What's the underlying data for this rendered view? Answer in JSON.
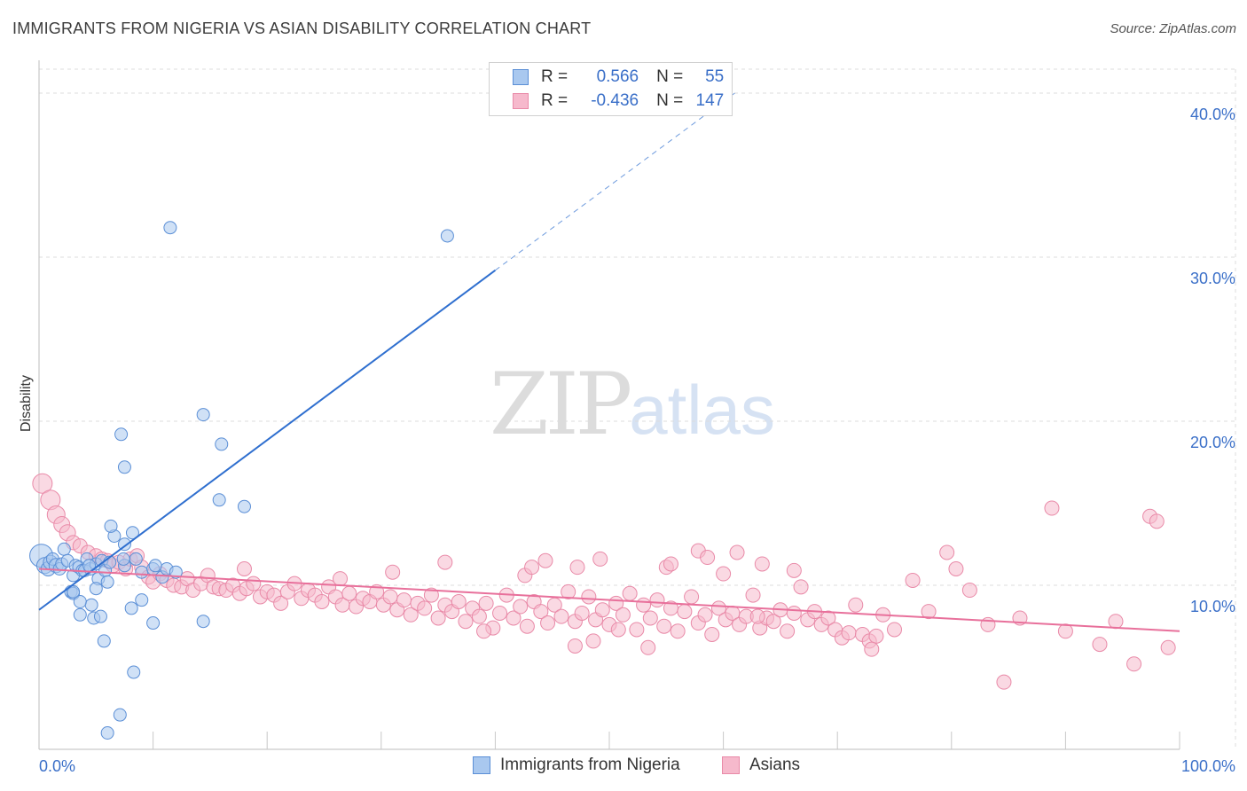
{
  "title": "IMMIGRANTS FROM NIGERIA VS ASIAN DISABILITY CORRELATION CHART",
  "source": "Source: ZipAtlas.com",
  "watermark": {
    "zip": "ZIP",
    "atlas": "atlas"
  },
  "legend_box": [
    {
      "r_label": "R =",
      "r_value": "0.566",
      "n_label": "N =",
      "n_value": "55"
    },
    {
      "r_label": "R =",
      "r_value": "-0.436",
      "n_label": "N =",
      "n_value": "147"
    }
  ],
  "bottom_legend": [
    "Immigrants from Nigeria",
    "Asians"
  ],
  "colors": {
    "blue_fill": "#a9c8ef",
    "blue_stroke": "#5b8fd6",
    "blue_line": "#2f6fcf",
    "pink_fill": "#f6b9cc",
    "pink_stroke": "#e98aa8",
    "pink_line": "#e8709b",
    "grid": "#dcdcdc",
    "tick_text": "#3a6fc8"
  },
  "chart_data": {
    "type": "scatter",
    "title": "IMMIGRANTS FROM NIGERIA VS ASIAN DISABILITY CORRELATION CHART",
    "xlabel": "",
    "ylabel": "Disability",
    "xlim": [
      0,
      100
    ],
    "ylim": [
      0,
      42
    ],
    "x_tick_labels": [
      "0.0%",
      "100.0%"
    ],
    "y_ticks": [
      10,
      20,
      30,
      40
    ],
    "y_tick_labels": [
      "10.0%",
      "20.0%",
      "30.0%",
      "40.0%"
    ],
    "series": [
      {
        "name": "Immigrants from Nigeria",
        "r": 0.566,
        "n": 55,
        "trend": {
          "x0": 0,
          "y0": 8.5,
          "x1": 40,
          "y1": 29.2,
          "dash_to_x": 61,
          "dash_to_y": 40.0
        },
        "points": [
          [
            0.2,
            11.8,
            13
          ],
          [
            0.5,
            11.2,
            9
          ],
          [
            0.8,
            11.0,
            8
          ],
          [
            1.0,
            11.4,
            8
          ],
          [
            1.2,
            11.6,
            7
          ],
          [
            1.5,
            11.2,
            8
          ],
          [
            1.8,
            11.0,
            7
          ],
          [
            2.0,
            11.3,
            7
          ],
          [
            2.2,
            12.2,
            7
          ],
          [
            2.5,
            11.5,
            7
          ],
          [
            2.8,
            9.6,
            7
          ],
          [
            3.0,
            9.5,
            7
          ],
          [
            3.0,
            10.6,
            7
          ],
          [
            3.2,
            11.2,
            7
          ],
          [
            3.5,
            11.1,
            7
          ],
          [
            3.8,
            10.9,
            7
          ],
          [
            4.0,
            10.9,
            7
          ],
          [
            4.2,
            11.6,
            7
          ],
          [
            4.5,
            11.0,
            7
          ],
          [
            5.0,
            11.3,
            7
          ],
          [
            5.2,
            10.4,
            7
          ],
          [
            5.5,
            11.5,
            7
          ],
          [
            5.8,
            10.9,
            7
          ],
          [
            6.0,
            10.2,
            7
          ],
          [
            4.6,
            8.8,
            7
          ],
          [
            3.6,
            9.0,
            7
          ],
          [
            3.0,
            9.6,
            7
          ],
          [
            4.4,
            11.2,
            7
          ],
          [
            5.0,
            9.8,
            7
          ],
          [
            6.2,
            11.4,
            7
          ],
          [
            7.5,
            11.2,
            7
          ],
          [
            8.5,
            11.6,
            7
          ],
          [
            9.0,
            10.8,
            7
          ],
          [
            10.0,
            11.0,
            7
          ],
          [
            10.8,
            10.5,
            7
          ],
          [
            11.2,
            11.0,
            7
          ],
          [
            10.2,
            11.2,
            7
          ],
          [
            12.0,
            10.8,
            7
          ],
          [
            6.6,
            13.0,
            7
          ],
          [
            7.5,
            12.5,
            7
          ],
          [
            7.4,
            11.6,
            7
          ],
          [
            6.3,
            13.6,
            7
          ],
          [
            8.2,
            13.2,
            7
          ],
          [
            9.0,
            9.1,
            7
          ],
          [
            4.8,
            8.0,
            7
          ],
          [
            3.6,
            8.2,
            7
          ],
          [
            5.4,
            8.1,
            7
          ],
          [
            8.1,
            8.6,
            7
          ],
          [
            5.7,
            6.6,
            7
          ],
          [
            10.0,
            7.7,
            7
          ],
          [
            14.4,
            7.8,
            7
          ],
          [
            7.2,
            19.2,
            7
          ],
          [
            7.5,
            17.2,
            7
          ],
          [
            14.4,
            20.4,
            7
          ],
          [
            15.8,
            15.2,
            7
          ],
          [
            16.0,
            18.6,
            7
          ],
          [
            18.0,
            14.8,
            7
          ],
          [
            11.5,
            31.8,
            7
          ],
          [
            35.8,
            31.3,
            7
          ],
          [
            8.3,
            4.7,
            7
          ],
          [
            7.1,
            2.1,
            7
          ],
          [
            6.0,
            1.0,
            7
          ]
        ]
      },
      {
        "name": "Asians",
        "r": -0.436,
        "n": 147,
        "trend": {
          "x0": 0,
          "y0": 11.0,
          "x1": 100,
          "y1": 7.2
        },
        "points": [
          [
            0.3,
            16.2,
            11
          ],
          [
            1.0,
            15.2,
            11
          ],
          [
            1.5,
            14.3,
            10
          ],
          [
            2.0,
            13.7,
            9
          ],
          [
            2.5,
            13.2,
            9
          ],
          [
            3.0,
            12.6,
            8
          ],
          [
            3.6,
            12.4,
            8
          ],
          [
            4.3,
            12.0,
            8
          ],
          [
            5.0,
            11.8,
            8
          ],
          [
            5.5,
            11.6,
            8
          ],
          [
            6.0,
            11.5,
            8
          ],
          [
            6.5,
            11.2,
            8
          ],
          [
            7.0,
            11.4,
            8
          ],
          [
            7.6,
            11.0,
            8
          ],
          [
            8.0,
            11.6,
            8
          ],
          [
            8.6,
            11.8,
            8
          ],
          [
            9.0,
            11.1,
            8
          ],
          [
            9.6,
            10.5,
            8
          ],
          [
            10.0,
            10.2,
            8
          ],
          [
            10.6,
            10.7,
            8
          ],
          [
            11.2,
            10.3,
            8
          ],
          [
            11.8,
            10.0,
            8
          ],
          [
            12.5,
            9.9,
            8
          ],
          [
            13.0,
            10.4,
            8
          ],
          [
            13.5,
            9.7,
            8
          ],
          [
            14.2,
            10.1,
            8
          ],
          [
            14.8,
            10.6,
            8
          ],
          [
            15.3,
            9.9,
            8
          ],
          [
            15.8,
            9.8,
            8
          ],
          [
            16.4,
            9.7,
            8
          ],
          [
            17.0,
            10.0,
            8
          ],
          [
            17.6,
            9.5,
            8
          ],
          [
            18.2,
            9.8,
            8
          ],
          [
            18.8,
            10.1,
            8
          ],
          [
            19.4,
            9.3,
            8
          ],
          [
            20.0,
            9.6,
            8
          ],
          [
            20.6,
            9.4,
            8
          ],
          [
            21.2,
            8.9,
            8
          ],
          [
            21.8,
            9.6,
            8
          ],
          [
            22.4,
            10.1,
            8
          ],
          [
            23.0,
            9.2,
            8
          ],
          [
            23.6,
            9.7,
            8
          ],
          [
            24.2,
            9.4,
            8
          ],
          [
            24.8,
            9.0,
            8
          ],
          [
            25.4,
            9.9,
            8
          ],
          [
            26.0,
            9.3,
            8
          ],
          [
            26.6,
            8.8,
            8
          ],
          [
            27.2,
            9.5,
            8
          ],
          [
            27.8,
            8.7,
            8
          ],
          [
            28.4,
            9.2,
            8
          ],
          [
            29.0,
            9.0,
            8
          ],
          [
            29.6,
            9.6,
            8
          ],
          [
            30.2,
            8.8,
            8
          ],
          [
            30.8,
            9.3,
            8
          ],
          [
            31.4,
            8.5,
            8
          ],
          [
            32.0,
            9.1,
            8
          ],
          [
            32.6,
            8.2,
            8
          ],
          [
            33.2,
            8.9,
            8
          ],
          [
            33.8,
            8.6,
            8
          ],
          [
            34.4,
            9.4,
            8
          ],
          [
            35.0,
            8.0,
            8
          ],
          [
            35.6,
            8.8,
            8
          ],
          [
            36.2,
            8.4,
            8
          ],
          [
            36.8,
            9.0,
            8
          ],
          [
            37.4,
            7.8,
            8
          ],
          [
            38.0,
            8.6,
            8
          ],
          [
            38.6,
            8.1,
            8
          ],
          [
            39.2,
            8.9,
            8
          ],
          [
            39.8,
            7.4,
            8
          ],
          [
            40.4,
            8.3,
            8
          ],
          [
            41.0,
            9.4,
            8
          ],
          [
            41.6,
            8.0,
            8
          ],
          [
            42.2,
            8.7,
            8
          ],
          [
            42.8,
            7.5,
            8
          ],
          [
            43.4,
            9.0,
            8
          ],
          [
            44.0,
            8.4,
            8
          ],
          [
            44.6,
            7.7,
            8
          ],
          [
            45.2,
            8.8,
            8
          ],
          [
            45.8,
            8.1,
            8
          ],
          [
            46.4,
            9.6,
            8
          ],
          [
            47.0,
            7.8,
            8
          ],
          [
            47.6,
            8.3,
            8
          ],
          [
            48.2,
            9.3,
            8
          ],
          [
            48.8,
            7.9,
            8
          ],
          [
            49.4,
            8.5,
            8
          ],
          [
            50.0,
            7.6,
            8
          ],
          [
            50.6,
            8.9,
            8
          ],
          [
            51.2,
            8.2,
            8
          ],
          [
            51.8,
            9.5,
            8
          ],
          [
            52.4,
            7.3,
            8
          ],
          [
            53.0,
            8.8,
            8
          ],
          [
            53.6,
            8.0,
            8
          ],
          [
            54.2,
            9.1,
            8
          ],
          [
            54.8,
            7.5,
            8
          ],
          [
            55.4,
            8.6,
            8
          ],
          [
            56.0,
            7.2,
            8
          ],
          [
            56.6,
            8.4,
            8
          ],
          [
            57.2,
            9.3,
            8
          ],
          [
            57.8,
            7.7,
            8
          ],
          [
            58.4,
            8.2,
            8
          ],
          [
            59.0,
            7.0,
            8
          ],
          [
            59.6,
            8.6,
            8
          ],
          [
            60.2,
            7.9,
            8
          ],
          [
            60.8,
            8.3,
            8
          ],
          [
            61.4,
            7.6,
            8
          ],
          [
            62.0,
            8.1,
            8
          ],
          [
            62.6,
            9.4,
            8
          ],
          [
            63.2,
            7.4,
            8
          ],
          [
            63.8,
            8.0,
            8
          ],
          [
            64.4,
            7.8,
            8
          ],
          [
            65.0,
            8.5,
            8
          ],
          [
            65.6,
            7.2,
            8
          ],
          [
            66.2,
            8.3,
            8
          ],
          [
            66.8,
            9.9,
            8
          ],
          [
            67.4,
            7.9,
            8
          ],
          [
            68.0,
            8.4,
            8
          ],
          [
            68.6,
            7.6,
            8
          ],
          [
            69.2,
            8.0,
            8
          ],
          [
            69.8,
            7.3,
            8
          ],
          [
            70.4,
            6.8,
            8
          ],
          [
            71.0,
            7.1,
            8
          ],
          [
            71.6,
            8.8,
            8
          ],
          [
            72.2,
            7.0,
            8
          ],
          [
            72.8,
            6.6,
            8
          ],
          [
            73.4,
            6.9,
            8
          ],
          [
            74.0,
            8.2,
            8
          ],
          [
            75.0,
            7.3,
            8
          ],
          [
            76.6,
            10.3,
            8
          ],
          [
            78.0,
            8.4,
            8
          ],
          [
            79.6,
            12.0,
            8
          ],
          [
            80.4,
            11.0,
            8
          ],
          [
            81.6,
            9.7,
            8
          ],
          [
            83.2,
            7.6,
            8
          ],
          [
            84.6,
            4.1,
            8
          ],
          [
            86.0,
            8.0,
            8
          ],
          [
            88.8,
            14.7,
            8
          ],
          [
            90.0,
            7.2,
            8
          ],
          [
            93.0,
            6.4,
            8
          ],
          [
            94.4,
            7.8,
            8
          ],
          [
            96.0,
            5.2,
            8
          ],
          [
            97.4,
            14.2,
            8
          ],
          [
            98.0,
            13.9,
            8
          ],
          [
            99.0,
            6.2,
            8
          ],
          [
            42.6,
            10.6,
            8
          ],
          [
            43.2,
            11.1,
            8
          ],
          [
            44.4,
            11.5,
            8
          ],
          [
            47.2,
            11.1,
            8
          ],
          [
            49.2,
            11.6,
            8
          ],
          [
            55.0,
            11.1,
            8
          ],
          [
            57.8,
            12.1,
            8
          ],
          [
            58.6,
            11.7,
            8
          ],
          [
            60.0,
            10.7,
            8
          ],
          [
            61.2,
            12.0,
            8
          ],
          [
            63.4,
            11.3,
            8
          ],
          [
            66.2,
            10.9,
            8
          ],
          [
            55.4,
            11.3,
            8
          ],
          [
            35.6,
            11.4,
            8
          ],
          [
            31.0,
            10.8,
            8
          ],
          [
            26.4,
            10.4,
            8
          ],
          [
            18.0,
            11.0,
            8
          ],
          [
            47.0,
            6.3,
            8
          ],
          [
            48.6,
            6.6,
            8
          ],
          [
            53.4,
            6.2,
            8
          ],
          [
            50.8,
            7.3,
            8
          ],
          [
            39.0,
            7.2,
            8
          ],
          [
            63.0,
            8.1,
            8
          ],
          [
            73.0,
            6.1,
            8
          ]
        ]
      }
    ]
  }
}
